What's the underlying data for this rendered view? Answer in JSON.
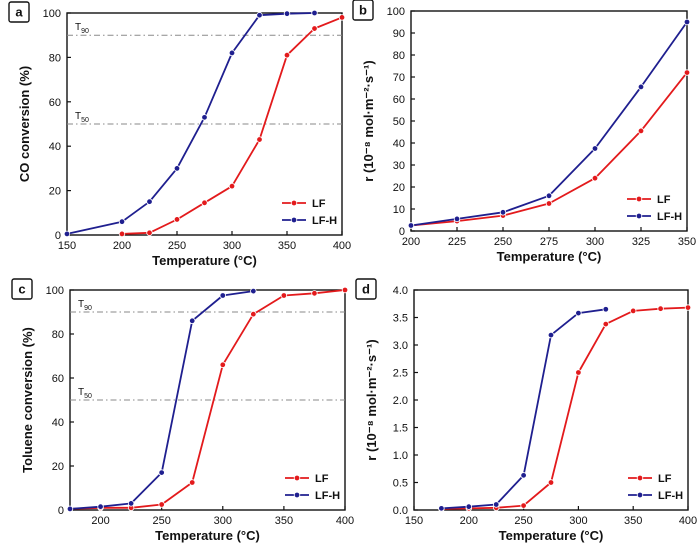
{
  "chart_data": [
    {
      "panel": "a",
      "type": "line",
      "xlabel": "Temperature (°C)",
      "ylabel": "CO conversion (%)",
      "xlim": [
        150,
        400
      ],
      "ylim": [
        0,
        100
      ],
      "xticks": [
        150,
        200,
        250,
        300,
        350,
        400
      ],
      "yticks": [
        0,
        20,
        40,
        60,
        80,
        100
      ],
      "reference_lines": [
        {
          "label": "T",
          "sub": "90",
          "y": 90
        },
        {
          "label": "T",
          "sub": "50",
          "y": 50
        }
      ],
      "legend": "bottom-right",
      "series": [
        {
          "name": "LF",
          "color": "#e31a1c",
          "x": [
            200,
            225,
            250,
            275,
            300,
            325,
            350,
            375,
            400
          ],
          "y": [
            0.5,
            1,
            7,
            14.5,
            22,
            43,
            81,
            93,
            98
          ]
        },
        {
          "name": "LF-H",
          "color": "#1f1f8f",
          "x": [
            150,
            200,
            225,
            250,
            275,
            300,
            325,
            350,
            375
          ],
          "y": [
            0.5,
            6,
            15,
            30,
            53,
            82,
            99,
            99.7,
            100
          ]
        }
      ]
    },
    {
      "panel": "b",
      "type": "line",
      "xlabel": "Temperature (°C)",
      "ylabel": "r (10⁻⁸ mol·m⁻²·s⁻¹)",
      "xlim": [
        200,
        350
      ],
      "ylim": [
        0,
        100
      ],
      "xticks": [
        200,
        225,
        250,
        275,
        300,
        325,
        350
      ],
      "yticks": [
        0,
        10,
        20,
        30,
        40,
        50,
        60,
        70,
        80,
        90,
        100
      ],
      "legend": "bottom-right",
      "series": [
        {
          "name": "LF",
          "color": "#e31a1c",
          "x": [
            200,
            225,
            250,
            275,
            300,
            325,
            350
          ],
          "y": [
            2.5,
            4.5,
            7,
            12.5,
            24,
            45.5,
            72
          ]
        },
        {
          "name": "LF-H",
          "color": "#1f1f8f",
          "x": [
            200,
            225,
            250,
            275,
            300,
            325,
            350
          ],
          "y": [
            2.5,
            5.5,
            8.5,
            16,
            37.5,
            65.5,
            95
          ]
        }
      ]
    },
    {
      "panel": "c",
      "type": "line",
      "xlabel": "Temperature (°C)",
      "ylabel": "Toluene conversion (%)",
      "xlim": [
        175,
        400
      ],
      "ylim": [
        0,
        100
      ],
      "xticks": [
        200,
        250,
        300,
        350,
        400
      ],
      "yticks": [
        0,
        20,
        40,
        60,
        80,
        100
      ],
      "reference_lines": [
        {
          "label": "T",
          "sub": "90",
          "y": 90
        },
        {
          "label": "T",
          "sub": "50",
          "y": 50
        }
      ],
      "legend": "bottom-right",
      "series": [
        {
          "name": "LF",
          "color": "#e31a1c",
          "x": [
            175,
            200,
            225,
            250,
            275,
            300,
            325,
            350,
            375,
            400
          ],
          "y": [
            0.5,
            1,
            1,
            2.5,
            12.5,
            66,
            89,
            97.5,
            98.5,
            100
          ]
        },
        {
          "name": "LF-H",
          "color": "#1f1f8f",
          "x": [
            175,
            200,
            225,
            250,
            275,
            300,
            325
          ],
          "y": [
            0.5,
            1.5,
            3,
            17,
            86,
            97.5,
            99.5
          ]
        }
      ]
    },
    {
      "panel": "d",
      "type": "line",
      "xlabel": "Temperature (°C)",
      "ylabel": "r (10⁻⁸ mol·m⁻²·s⁻¹)",
      "xlim": [
        150,
        400
      ],
      "ylim": [
        0,
        4.0
      ],
      "xticks": [
        150,
        200,
        250,
        300,
        350,
        400
      ],
      "yticks": [
        0.0,
        0.5,
        1.0,
        1.5,
        2.0,
        2.5,
        3.0,
        3.5,
        4.0
      ],
      "legend": "bottom-right",
      "series": [
        {
          "name": "LF",
          "color": "#e31a1c",
          "x": [
            175,
            200,
            225,
            250,
            275,
            300,
            325,
            350,
            375,
            400
          ],
          "y": [
            0.02,
            0.03,
            0.04,
            0.08,
            0.5,
            2.5,
            3.38,
            3.62,
            3.66,
            3.68
          ]
        },
        {
          "name": "LF-H",
          "color": "#1f1f8f",
          "x": [
            175,
            200,
            225,
            250,
            275,
            300,
            325
          ],
          "y": [
            0.03,
            0.06,
            0.1,
            0.63,
            3.18,
            3.58,
            3.65
          ]
        }
      ]
    }
  ]
}
